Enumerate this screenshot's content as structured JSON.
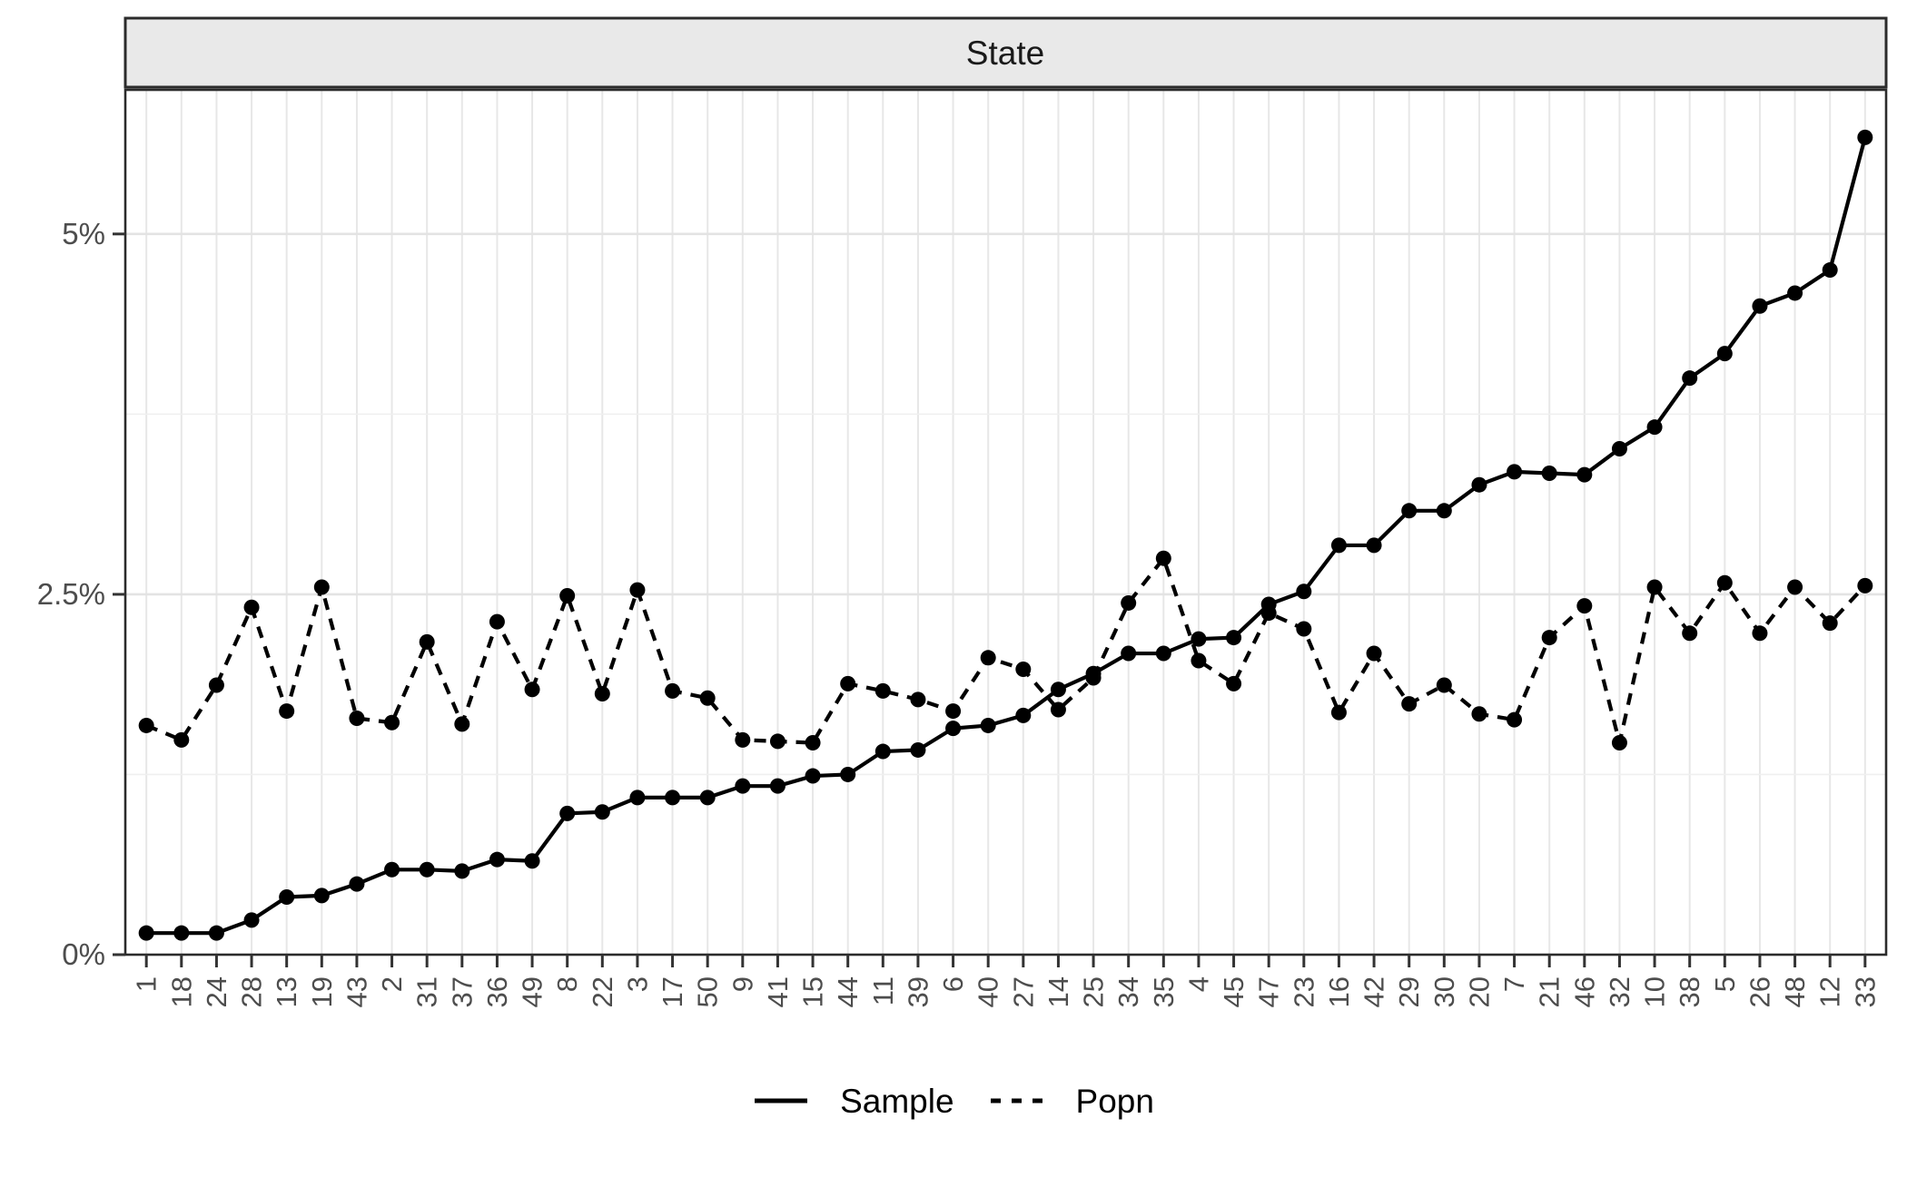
{
  "figure": {
    "strip_title": "State"
  },
  "chart_data": {
    "type": "line",
    "title": "State",
    "xlabel": "",
    "ylabel": "",
    "grid": "on",
    "legend_position": "bottom",
    "categories": [
      "1",
      "18",
      "24",
      "28",
      "13",
      "19",
      "43",
      "2",
      "31",
      "37",
      "36",
      "49",
      "8",
      "22",
      "3",
      "17",
      "50",
      "9",
      "41",
      "15",
      "44",
      "11",
      "39",
      "6",
      "40",
      "27",
      "14",
      "25",
      "34",
      "35",
      "4",
      "45",
      "47",
      "23",
      "16",
      "42",
      "29",
      "30",
      "20",
      "7",
      "21",
      "46",
      "32",
      "10",
      "38",
      "5",
      "26",
      "48",
      "12",
      "33"
    ],
    "series": [
      {
        "name": "Sample",
        "style": "solid",
        "values": [
          0.15,
          0.15,
          0.15,
          0.24,
          0.4,
          0.41,
          0.49,
          0.59,
          0.59,
          0.58,
          0.66,
          0.65,
          0.98,
          0.99,
          1.09,
          1.09,
          1.09,
          1.17,
          1.17,
          1.24,
          1.25,
          1.41,
          1.42,
          1.57,
          1.59,
          1.66,
          1.84,
          1.95,
          2.09,
          2.09,
          2.19,
          2.2,
          2.43,
          2.52,
          2.84,
          2.84,
          3.08,
          3.08,
          3.26,
          3.35,
          3.34,
          3.33,
          3.51,
          3.66,
          4.0,
          4.17,
          4.5,
          4.59,
          4.75,
          5.67
        ]
      },
      {
        "name": "Popn",
        "style": "dashed",
        "values": [
          1.59,
          1.49,
          1.87,
          2.41,
          1.69,
          2.55,
          1.64,
          1.61,
          2.17,
          1.6,
          2.31,
          1.84,
          2.49,
          1.81,
          2.53,
          1.83,
          1.78,
          1.49,
          1.48,
          1.47,
          1.88,
          1.83,
          1.77,
          1.69,
          2.06,
          1.98,
          1.7,
          1.92,
          2.44,
          2.75,
          2.04,
          1.88,
          2.37,
          2.26,
          1.68,
          2.09,
          1.74,
          1.87,
          1.67,
          1.63,
          2.2,
          2.42,
          1.47,
          2.55,
          2.23,
          2.58,
          2.23,
          2.55,
          2.3,
          2.56
        ]
      }
    ],
    "y_ticks": [
      {
        "value": 0,
        "label": "0%"
      },
      {
        "value": 2.5,
        "label": "2.5%"
      },
      {
        "value": 5,
        "label": "5%"
      }
    ],
    "y_minor": [
      1.25,
      3.75
    ],
    "ylim": [
      0,
      6.0
    ],
    "colors": {
      "series": "#000000",
      "axis_text": "#4D4D4D",
      "tick_mark": "#333333",
      "strip_bg": "#E9E9E9",
      "strip_text": "#1A1A1A",
      "strip_border": "#2B2B2B",
      "panel_border": "#2B2B2B",
      "grid_major": "#E3E3E3",
      "grid_minor": "#EFEFEF",
      "grid_vertical": "#E7E7E7",
      "background": "#FFFFFF"
    }
  }
}
